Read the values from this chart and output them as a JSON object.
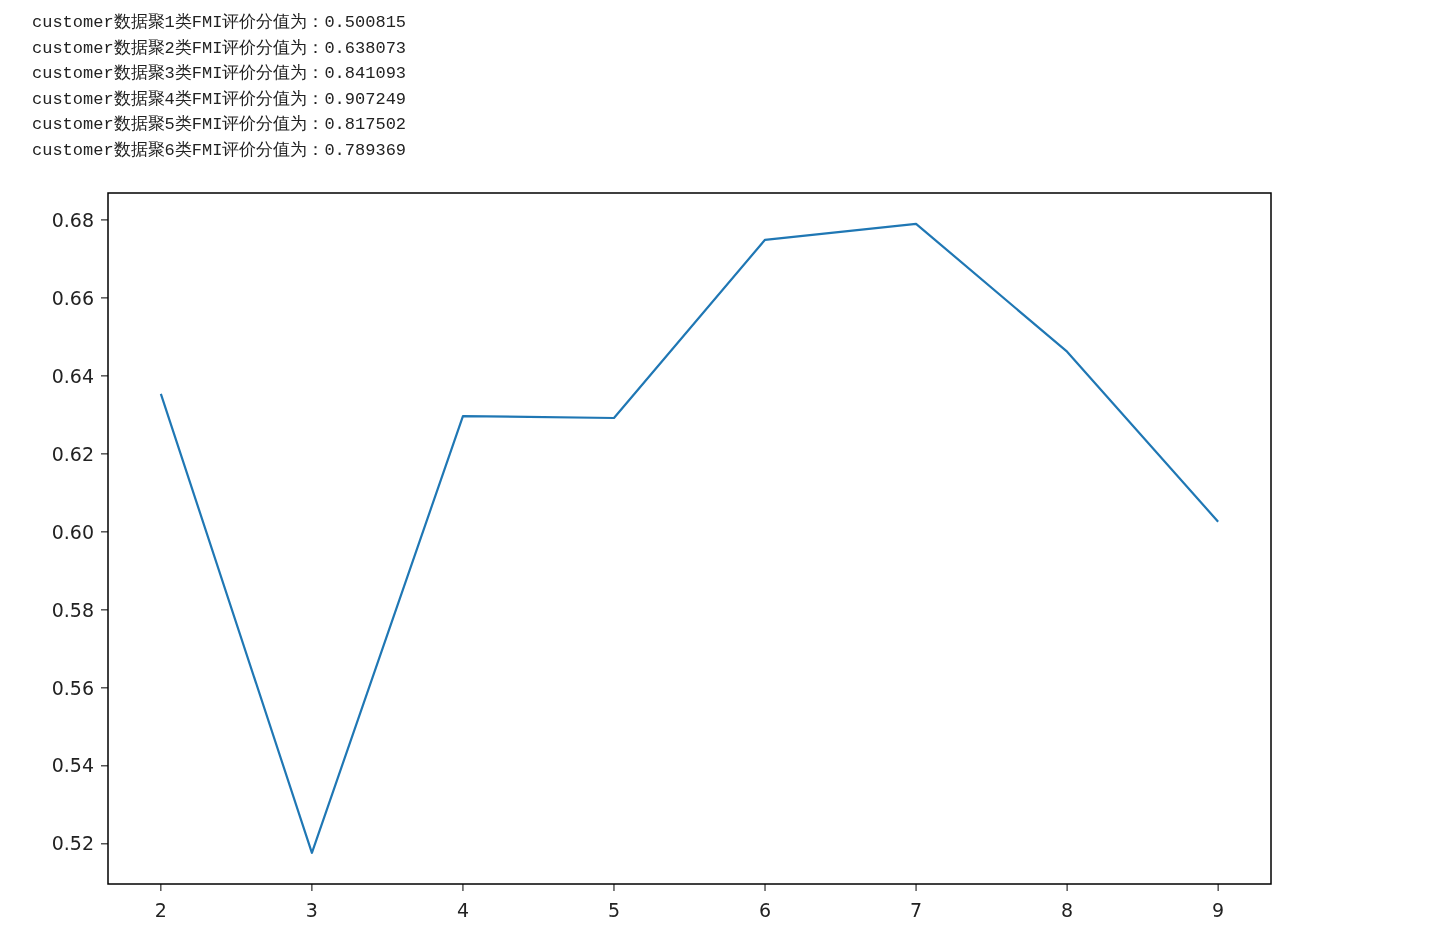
{
  "chart_data": {
    "type": "line",
    "annotations": [
      "customer数据聚1类FMI评价分值为：0.500815",
      "customer数据聚2类FMI评价分值为：0.638073",
      "customer数据聚3类FMI评价分值为：0.841093",
      "customer数据聚4类FMI评价分值为：0.907249",
      "customer数据聚5类FMI评价分值为：0.817502",
      "customer数据聚6类FMI评价分值为：0.789369"
    ],
    "x": [
      2,
      3,
      4,
      5,
      6,
      7,
      8,
      9
    ],
    "series": [
      {
        "color": "#1f77b4",
        "values": [
          0.6354,
          0.5177,
          0.6297,
          0.6292,
          0.6749,
          0.679,
          0.6462,
          0.6026
        ]
      }
    ],
    "xlim": [
      1.65,
      9.35
    ],
    "xticks": [
      2,
      3,
      4,
      5,
      6,
      7,
      8,
      9
    ],
    "ylim": [
      0.5097,
      0.6869
    ],
    "yticks": [
      0.52,
      0.54,
      0.56,
      0.58,
      {
        "value": 0.6,
        "label": "0.60"
      },
      0.62,
      0.64,
      0.66,
      0.68
    ],
    "grid": false
  }
}
